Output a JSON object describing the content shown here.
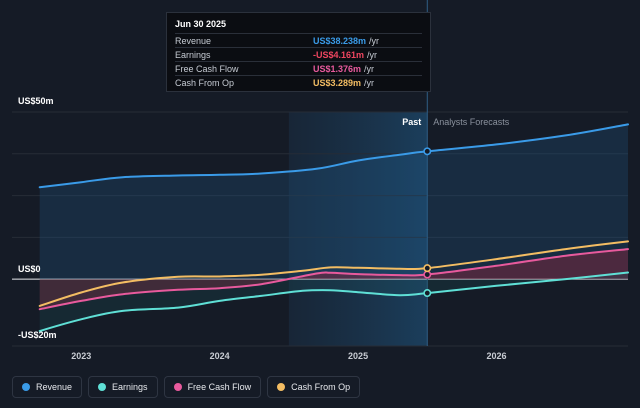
{
  "tooltip": {
    "date": "Jun 30 2025",
    "rows": [
      {
        "name": "Revenue",
        "value": "US$38.238m",
        "unit": "/yr",
        "color": "#3a9be8"
      },
      {
        "name": "Earnings",
        "value": "-US$4.161m",
        "unit": "/yr",
        "color": "#ef4660"
      },
      {
        "name": "Free Cash Flow",
        "value": "US$1.376m",
        "unit": "/yr",
        "color": "#e85a9d"
      },
      {
        "name": "Cash From Op",
        "value": "US$3.289m",
        "unit": "/yr",
        "color": "#f3bd63"
      }
    ]
  },
  "labels": {
    "past": "Past",
    "forecast": "Analysts Forecasts"
  },
  "legend": [
    {
      "label": "Revenue",
      "color": "#3a9be8"
    },
    {
      "label": "Earnings",
      "color": "#5fe0d6"
    },
    {
      "label": "Free Cash Flow",
      "color": "#e85a9d"
    },
    {
      "label": "Cash From Op",
      "color": "#f3bd63"
    }
  ],
  "chart_data": {
    "type": "line",
    "x_ticks": [
      "2023",
      "2024",
      "2025",
      "2026"
    ],
    "y_ticks": [
      "US$50m",
      "US$0",
      "-US$20m"
    ],
    "ylim": [
      -20,
      50
    ],
    "xlim": [
      2022.5,
      2026.95
    ],
    "divider_x": 2025.5,
    "series": [
      {
        "name": "Revenue",
        "color": "#3a9be8",
        "x": [
          2022.7,
          2023.0,
          2023.3,
          2023.7,
          2024.0,
          2024.3,
          2024.7,
          2025.0,
          2025.3,
          2025.5,
          2026.0,
          2026.5,
          2026.95
        ],
        "y": [
          27.5,
          29.0,
          30.5,
          31.0,
          31.2,
          31.6,
          33.0,
          35.5,
          37.2,
          38.238,
          40.3,
          43.0,
          46.3
        ]
      },
      {
        "name": "Earnings",
        "color": "#5fe0d6",
        "x": [
          2022.7,
          2023.0,
          2023.3,
          2023.7,
          2024.0,
          2024.3,
          2024.6,
          2024.8,
          2025.0,
          2025.3,
          2025.5,
          2026.0,
          2026.5,
          2026.95
        ],
        "y": [
          -15.5,
          -12.0,
          -9.5,
          -8.5,
          -6.5,
          -5.0,
          -3.5,
          -3.3,
          -3.9,
          -4.8,
          -4.161,
          -2.0,
          0.0,
          2.0
        ]
      },
      {
        "name": "Free Cash Flow",
        "color": "#e85a9d",
        "x": [
          2022.7,
          2023.0,
          2023.3,
          2023.7,
          2024.0,
          2024.3,
          2024.7,
          2024.8,
          2025.0,
          2025.3,
          2025.5,
          2026.0,
          2026.5,
          2026.95
        ],
        "y": [
          -9.0,
          -6.5,
          -4.5,
          -3.2,
          -2.7,
          -1.5,
          1.7,
          1.9,
          1.5,
          1.2,
          1.376,
          4.0,
          7.0,
          9.0
        ]
      },
      {
        "name": "Cash From Op",
        "color": "#f3bd63",
        "x": [
          2022.7,
          2023.0,
          2023.3,
          2023.7,
          2024.0,
          2024.3,
          2024.6,
          2024.8,
          2025.0,
          2025.3,
          2025.5,
          2026.0,
          2026.5,
          2026.95
        ],
        "y": [
          -8.0,
          -4.0,
          -1.0,
          0.7,
          0.8,
          1.3,
          2.5,
          3.5,
          3.4,
          3.1,
          3.289,
          6.0,
          9.0,
          11.3
        ]
      }
    ]
  }
}
